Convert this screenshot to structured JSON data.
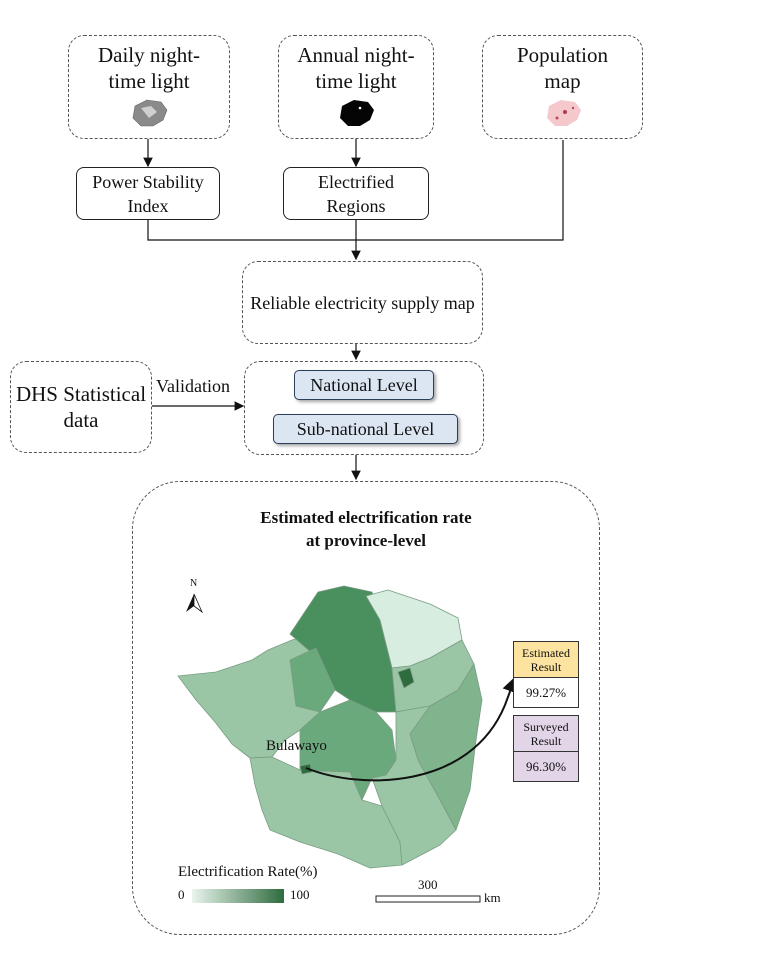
{
  "inputs": {
    "daily": "Daily night-time light",
    "annual": "Annual night-time light",
    "population": "Population map"
  },
  "process": {
    "psi": "Power Stability Index",
    "electrified": "Electrified Regions",
    "reliable_map": "Reliable electricity supply map"
  },
  "validation": {
    "dhs": "DHS Statistical data",
    "arrow_label": "Validation",
    "national": "National Level",
    "subnational": "Sub-national Level"
  },
  "result_panel": {
    "title_line1": "Estimated electrification rate",
    "title_line2": "at province-level",
    "north": "N",
    "city_label": "Bulawayo",
    "estimated_label": "Estimated Result",
    "estimated_value": "99.27%",
    "surveyed_label": "Surveyed Result",
    "surveyed_value": "96.30%",
    "legend_title": "Electrification Rate(%)",
    "legend_min": "0",
    "legend_max": "100",
    "scale_value": "300",
    "scale_unit": "km"
  },
  "colors": {
    "legend_low": "#e8f4ec",
    "legend_high": "#2e6b3e",
    "estimated_fill": "#fde3a0",
    "surveyed_fill": "#e2d5e8",
    "pill_fill": "#dce6f3"
  }
}
